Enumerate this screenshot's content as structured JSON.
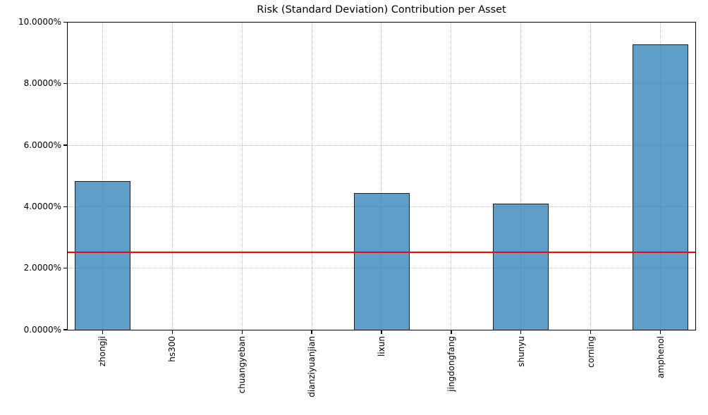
{
  "chart_data": {
    "type": "bar",
    "title": "Risk (Standard Deviation) Contribution per Asset",
    "categories": [
      "zhongji",
      "hs300",
      "chuangyeban",
      "dianziyuanjian",
      "lixun",
      "jingdongfang",
      "shunyu",
      "corning",
      "amphenol"
    ],
    "values": [
      4.84,
      0.01,
      0.01,
      0.01,
      4.44,
      0.01,
      4.11,
      0.01,
      9.28
    ],
    "value_unit": "percent",
    "ylim": [
      0,
      10
    ],
    "yticks": [
      {
        "value": 0,
        "label": "0.0000%"
      },
      {
        "value": 2,
        "label": "2.0000%"
      },
      {
        "value": 4,
        "label": "4.0000%"
      },
      {
        "value": 6,
        "label": "6.0000%"
      },
      {
        "value": 8,
        "label": "8.0000%"
      },
      {
        "value": 10,
        "label": "10.0000%"
      }
    ],
    "reference_line": {
      "value": 2.52,
      "color": "#ff0000"
    },
    "xlabel": "",
    "ylabel": "",
    "legend": "none",
    "grid": "both-dotted",
    "styles": {
      "bar_fill": "#1f77b4",
      "bar_alpha": 0.71,
      "bar_edge": "#000000",
      "grid_color": "#c4c4c4",
      "axis_color": "#000000",
      "background": "#ffffff"
    }
  }
}
